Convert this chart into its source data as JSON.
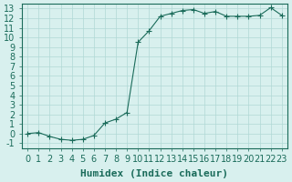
{
  "x": [
    0,
    1,
    2,
    3,
    4,
    5,
    6,
    7,
    8,
    9,
    10,
    11,
    12,
    13,
    14,
    15,
    16,
    17,
    18,
    19,
    20,
    21,
    22,
    23
  ],
  "y": [
    0.0,
    0.1,
    -0.3,
    -0.6,
    -0.7,
    -0.6,
    -0.2,
    1.1,
    1.5,
    2.2,
    9.5,
    10.7,
    12.2,
    12.5,
    12.8,
    12.9,
    12.5,
    12.7,
    12.2,
    12.2,
    12.2,
    12.3,
    13.1,
    12.3
  ],
  "line_color": "#1a6b5a",
  "marker_color": "#1a6b5a",
  "bg_color": "#d8f0ee",
  "grid_color": "#b0d8d5",
  "axis_color": "#1a6b5a",
  "xlabel": "Humidex (Indice chaleur)",
  "ylim": [
    -1.5,
    13.5
  ],
  "xlim": [
    -0.5,
    23.5
  ],
  "yticks": [
    -1,
    0,
    1,
    2,
    3,
    4,
    5,
    6,
    7,
    8,
    9,
    10,
    11,
    12,
    13
  ],
  "xticks": [
    0,
    1,
    2,
    3,
    4,
    5,
    6,
    7,
    8,
    9,
    10,
    11,
    12,
    13,
    14,
    15,
    16,
    17,
    18,
    19,
    20,
    21,
    22,
    23
  ],
  "font_size": 7,
  "xlabel_font_size": 8
}
